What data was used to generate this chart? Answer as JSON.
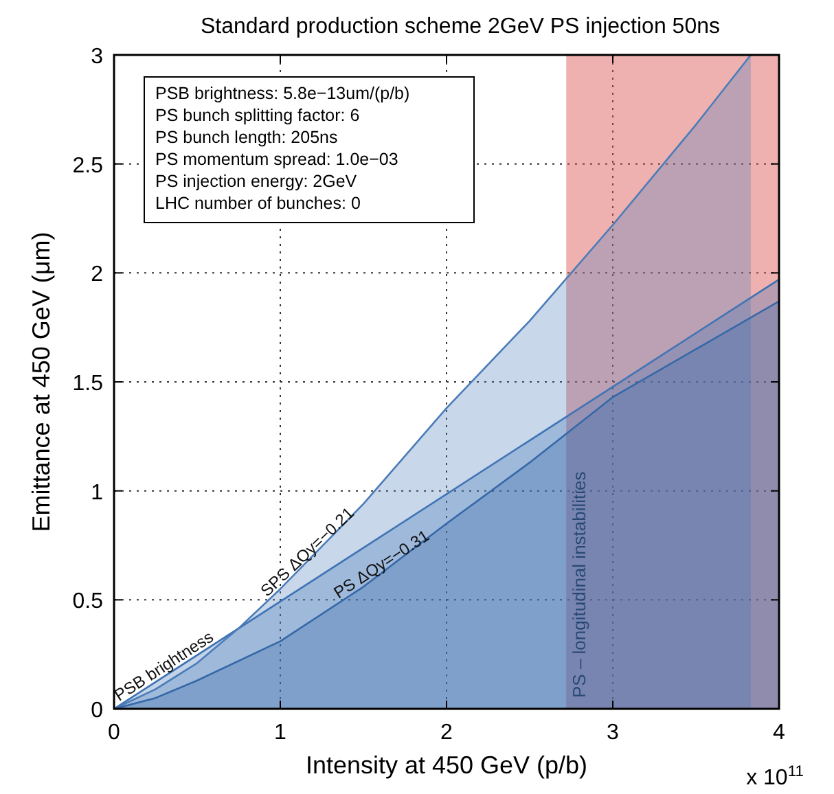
{
  "chart_data": {
    "type": "area",
    "title": "Standard production scheme 2GeV PS injection 50ns",
    "xlabel": "Intensity at 450 GeV (p/b)",
    "ylabel": "Emittance at 450 GeV (μm)",
    "xlim": [
      0,
      4
    ],
    "ylim": [
      0,
      3
    ],
    "xticks": [
      0,
      1,
      2,
      3,
      4
    ],
    "yticks": [
      0,
      0.5,
      1,
      1.5,
      2,
      2.5,
      3
    ],
    "grid": true,
    "line_style": "solid",
    "series": [
      {
        "name": "PSB brightness",
        "color": "#3d72b4",
        "x": [
          0,
          4
        ],
        "values": [
          0,
          1.97
        ]
      },
      {
        "name": "SPS ΔQy=−0.21",
        "color": "#4a7cb9",
        "x": [
          0,
          0.25,
          0.5,
          0.75,
          1,
          1.5,
          2,
          2.5,
          3,
          3.5,
          3.83
        ],
        "values": [
          0,
          0.09,
          0.21,
          0.37,
          0.55,
          0.94,
          1.38,
          1.78,
          2.22,
          2.68,
          3.0
        ]
      },
      {
        "name": "PS ΔQy=−0.31",
        "color": "#3568a8",
        "x": [
          0,
          0.25,
          0.5,
          1,
          1.5,
          2,
          2.5,
          3,
          3.5,
          4
        ],
        "values": [
          0,
          0.05,
          0.13,
          0.31,
          0.56,
          0.85,
          1.13,
          1.43,
          1.65,
          1.87
        ]
      }
    ],
    "bands": [
      {
        "axis": "x",
        "from": 2.72,
        "to": 4,
        "label": "PS – longitudinal instabilities",
        "color": "#d9534f"
      }
    ],
    "annotations": [
      "PSB brightness: 5.8e−13um/(p/b)",
      "PS bunch splitting factor: 6",
      "PS bunch length: 205ns",
      "PS momentum spread: 1.0e−03",
      "PS injection energy: 2GeV",
      "LHC number of bunches: 0",
      "x 10$^{11}$"
    ]
  }
}
